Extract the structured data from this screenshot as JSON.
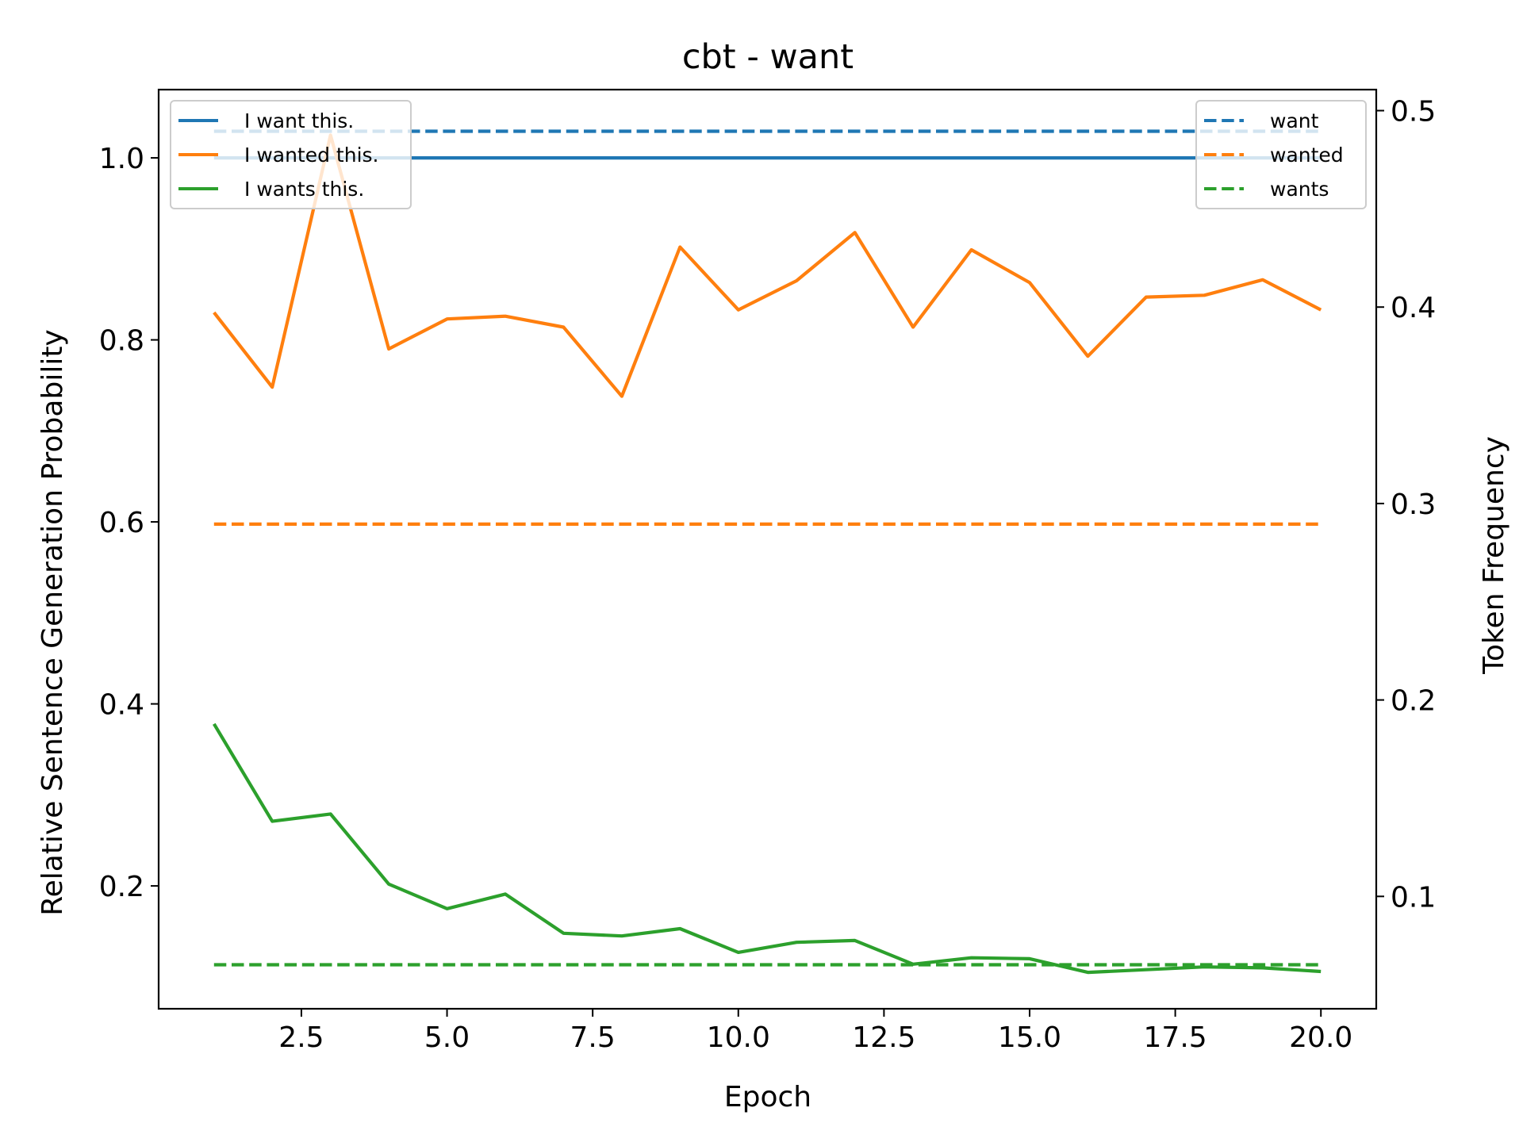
{
  "chart_data": {
    "type": "line",
    "title": "cbt - want",
    "xlabel": "Epoch",
    "ylabel": "Relative Sentence Generation Probability",
    "y2label": "Token Frequency",
    "xlim": [
      0.05,
      20.95
    ],
    "ylim": [
      0.065,
      1.075
    ],
    "y2lim": [
      0.0428,
      0.5107
    ],
    "x_ticks": [
      2.5,
      5.0,
      7.5,
      10.0,
      12.5,
      15.0,
      17.5,
      20.0
    ],
    "x_tick_labels": [
      "2.5",
      "5.0",
      "7.5",
      "10.0",
      "12.5",
      "15.0",
      "17.5",
      "20.0"
    ],
    "y_ticks": [
      0.2,
      0.4,
      0.6,
      0.8,
      1.0
    ],
    "y_tick_labels": [
      "0.2",
      "0.4",
      "0.6",
      "0.8",
      "1.0"
    ],
    "y2_ticks": [
      0.1,
      0.2,
      0.3,
      0.4,
      0.5
    ],
    "y2_tick_labels": [
      "0.1",
      "0.2",
      "0.3",
      "0.4",
      "0.5"
    ],
    "grid": false,
    "x": [
      1,
      2,
      3,
      4,
      5,
      6,
      7,
      8,
      9,
      10,
      11,
      12,
      13,
      14,
      15,
      16,
      17,
      18,
      19,
      20
    ],
    "series": [
      {
        "name": "I want this.",
        "axis": "left",
        "style": "solid",
        "color": "#1f77b4",
        "values": [
          1.0,
          1.0,
          1.0,
          1.0,
          1.0,
          1.0,
          1.0,
          1.0,
          1.0,
          1.0,
          1.0,
          1.0,
          1.0,
          1.0,
          1.0,
          1.0,
          1.0,
          1.0,
          1.0,
          1.0
        ]
      },
      {
        "name": "I wanted this.",
        "axis": "left",
        "style": "solid",
        "color": "#ff7f0e",
        "values": [
          0.83,
          0.748,
          1.025,
          0.79,
          0.823,
          0.826,
          0.814,
          0.738,
          0.902,
          0.833,
          0.865,
          0.918,
          0.814,
          0.899,
          0.863,
          0.782,
          0.847,
          0.849,
          0.866,
          0.833
        ]
      },
      {
        "name": "I wants this.",
        "axis": "left",
        "style": "solid",
        "color": "#2ca02c",
        "values": [
          0.378,
          0.271,
          0.279,
          0.202,
          0.175,
          0.191,
          0.148,
          0.145,
          0.153,
          0.127,
          0.138,
          0.14,
          0.114,
          0.121,
          0.12,
          0.105,
          0.108,
          0.111,
          0.11,
          0.106
        ]
      },
      {
        "name": "want",
        "axis": "right",
        "style": "dashed",
        "color": "#1f77b4",
        "values": [
          0.4895,
          0.4895,
          0.4895,
          0.4895,
          0.4895,
          0.4895,
          0.4895,
          0.4895,
          0.4895,
          0.4895,
          0.4895,
          0.4895,
          0.4895,
          0.4895,
          0.4895,
          0.4895,
          0.4895,
          0.4895,
          0.4895,
          0.4895
        ]
      },
      {
        "name": "wanted",
        "axis": "right",
        "style": "dashed",
        "color": "#ff7f0e",
        "values": [
          0.2895,
          0.2895,
          0.2895,
          0.2895,
          0.2895,
          0.2895,
          0.2895,
          0.2895,
          0.2895,
          0.2895,
          0.2895,
          0.2895,
          0.2895,
          0.2895,
          0.2895,
          0.2895,
          0.2895,
          0.2895,
          0.2895,
          0.2895
        ]
      },
      {
        "name": "wants",
        "axis": "right",
        "style": "dashed",
        "color": "#2ca02c",
        "values": [
          0.0652,
          0.0652,
          0.0652,
          0.0652,
          0.0652,
          0.0652,
          0.0652,
          0.0652,
          0.0652,
          0.0652,
          0.0652,
          0.0652,
          0.0652,
          0.0652,
          0.0652,
          0.0652,
          0.0652,
          0.0652,
          0.0652,
          0.0652
        ]
      }
    ],
    "legends": [
      {
        "placement": "upper-left",
        "entries": [
          "I want this.",
          "I wanted this.",
          "I wants this."
        ]
      },
      {
        "placement": "upper-right",
        "entries": [
          "want",
          "wanted",
          "wants"
        ]
      }
    ]
  }
}
